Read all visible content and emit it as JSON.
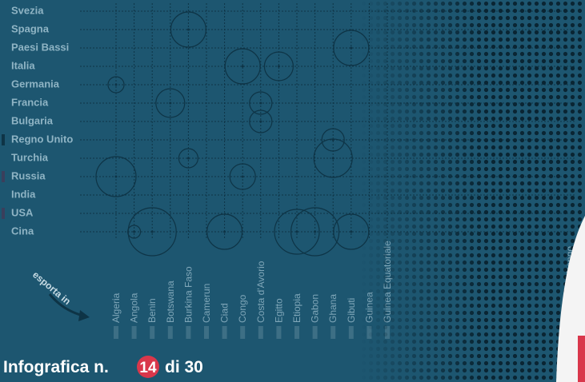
{
  "chart_data": {
    "type": "bubble",
    "axis_label": "esporta in",
    "rows": [
      "Svezia",
      "Spagna",
      "Paesi Bassi",
      "Italia",
      "Germania",
      "Francia",
      "Bulgaria",
      "Regno Unito",
      "Turchia",
      "Russia",
      "India",
      "USA",
      "Cina"
    ],
    "columns": [
      "Algeria",
      "Angola",
      "Benin",
      "Botswana",
      "Burkina Faso",
      "Camerun",
      "Ciad",
      "Congo",
      "Costa d'Avorio",
      "Egitto",
      "Etiopia",
      "Gabon",
      "Ghana",
      "Gibuti",
      "Guinea",
      "Guinea Equatoriale",
      "Rep. Dem. Congo"
    ],
    "points": [
      {
        "row": "Spagna",
        "column": "Burkina Faso",
        "size": 22
      },
      {
        "row": "Paesi Bassi",
        "column": "Gibuti",
        "size": 22
      },
      {
        "row": "Italia",
        "column": "Congo",
        "size": 22
      },
      {
        "row": "Italia",
        "column": "Egitto",
        "size": 18
      },
      {
        "row": "Germania",
        "column": "Algeria",
        "size": 10
      },
      {
        "row": "Francia",
        "column": "Botswana",
        "size": 18
      },
      {
        "row": "Francia",
        "column": "Costa d'Avorio",
        "size": 14
      },
      {
        "row": "Bulgaria",
        "column": "Costa d'Avorio",
        "size": 14
      },
      {
        "row": "Regno Unito",
        "column": "Ghana",
        "size": 14
      },
      {
        "row": "Turchia",
        "column": "Burkina Faso",
        "size": 12
      },
      {
        "row": "Turchia",
        "column": "Ghana",
        "size": 24
      },
      {
        "row": "Russia",
        "column": "Algeria",
        "size": 25
      },
      {
        "row": "Russia",
        "column": "Congo",
        "size": 16
      },
      {
        "row": "Cina",
        "column": "Angola",
        "size": 8
      },
      {
        "row": "Cina",
        "column": "Benin",
        "size": 30
      },
      {
        "row": "Cina",
        "column": "Ciad",
        "size": 22
      },
      {
        "row": "Cina",
        "column": "Etiopia",
        "size": 28
      },
      {
        "row": "Cina",
        "column": "Gabon",
        "size": 30
      },
      {
        "row": "Cina",
        "column": "Gibuti",
        "size": 22
      }
    ]
  },
  "footer": {
    "prefix": "Infografica n.",
    "number": "14",
    "suffix": "di 30"
  }
}
